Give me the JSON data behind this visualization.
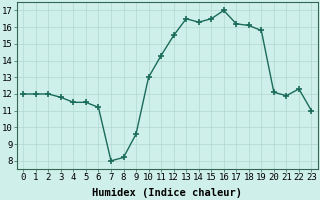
{
  "x": [
    0,
    1,
    2,
    3,
    4,
    5,
    6,
    7,
    8,
    9,
    10,
    11,
    12,
    13,
    14,
    15,
    16,
    17,
    18,
    19,
    20,
    21,
    22,
    23
  ],
  "y": [
    12,
    12,
    12,
    11.8,
    11.5,
    11.5,
    11.2,
    8.0,
    8.2,
    9.6,
    13.0,
    14.3,
    15.5,
    16.5,
    16.3,
    16.5,
    17.0,
    16.2,
    16.1,
    15.8,
    12.1,
    11.9,
    12.3,
    11.0
  ],
  "line_color": "#1a6b5a",
  "marker": "+",
  "markersize": 4,
  "bg_color": "#cff0ea",
  "grid_color": "#b0d8d0",
  "xlabel": "Humidex (Indice chaleur)",
  "ylim": [
    7.5,
    17.5
  ],
  "xlim": [
    -0.5,
    23.5
  ],
  "yticks": [
    8,
    9,
    10,
    11,
    12,
    13,
    14,
    15,
    16,
    17
  ],
  "xticks": [
    0,
    1,
    2,
    3,
    4,
    5,
    6,
    7,
    8,
    9,
    10,
    11,
    12,
    13,
    14,
    15,
    16,
    17,
    18,
    19,
    20,
    21,
    22,
    23
  ],
  "xlabel_fontsize": 7.5,
  "tick_fontsize": 6.5,
  "linewidth": 1.0
}
